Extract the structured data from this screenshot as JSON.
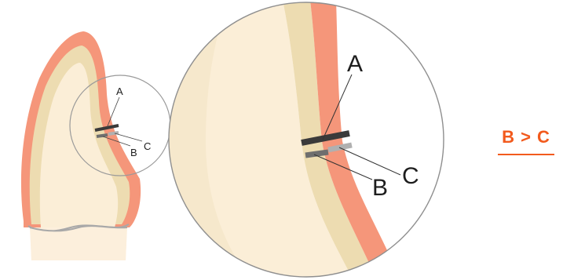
{
  "labels": {
    "small": {
      "a": "A",
      "b": "B",
      "c": "C"
    },
    "large": {
      "a": "A",
      "b": "B",
      "c": "C"
    }
  },
  "result_text": "B > C",
  "colors": {
    "enamel": "#f5967a",
    "dentin": "#eddcb1",
    "pulp": "#fbeed7",
    "root": "#fcefdc",
    "marker_a": "#3a3a3a",
    "marker_b": "#6e6e6e",
    "marker_c": "#b0b0b0",
    "accent": "#f25a1d"
  }
}
